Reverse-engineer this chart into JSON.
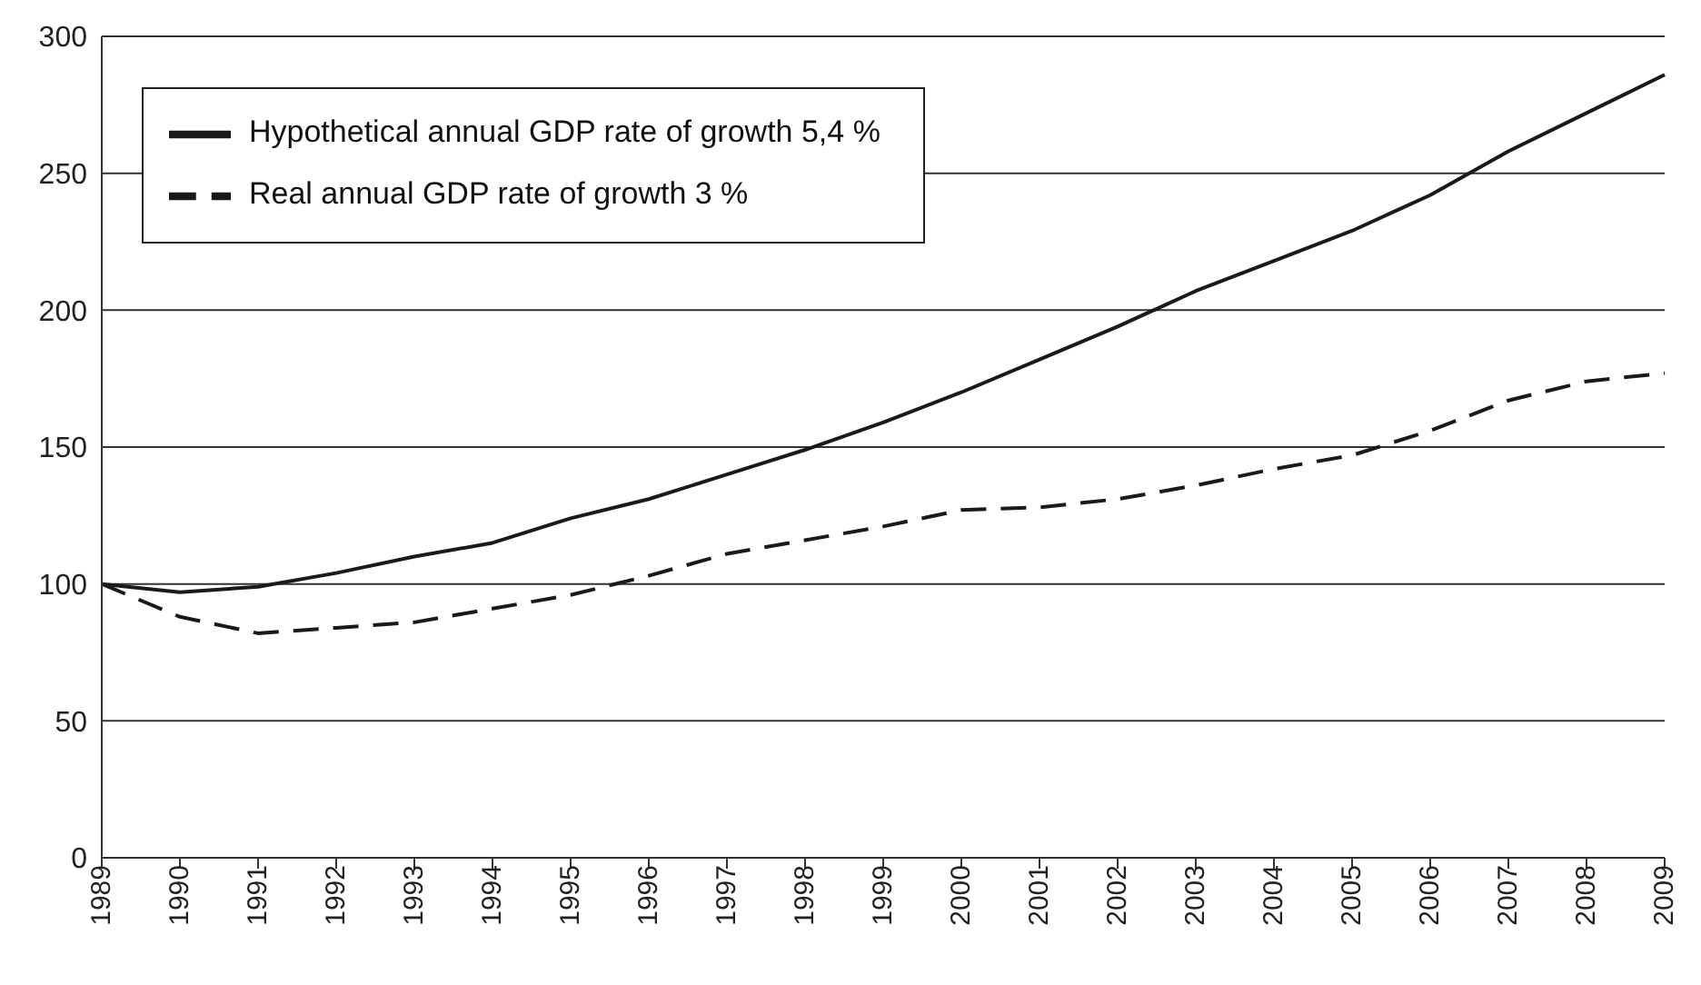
{
  "chart_data": {
    "type": "line",
    "categories": [
      "1989",
      "1990",
      "1991",
      "1992",
      "1993",
      "1994",
      "1995",
      "1996",
      "1997",
      "1998",
      "1999",
      "2000",
      "2001",
      "2002",
      "2003",
      "2004",
      "2005",
      "2006",
      "2007",
      "2008",
      "2009"
    ],
    "series": [
      {
        "name": "Hypothetical annual GDP rate of growth 5,4 %",
        "color": "#1a1a1a",
        "line_style": "solid",
        "values": [
          100,
          97,
          99,
          104,
          110,
          115,
          124,
          131,
          140,
          149,
          159,
          170,
          182,
          194,
          207,
          218,
          229,
          242,
          258,
          272,
          286
        ]
      },
      {
        "name": "Real annual GDP rate of growth 3 %",
        "color": "#1a1a1a",
        "line_style": "dashed",
        "values": [
          100,
          88,
          82,
          84,
          86,
          91,
          96,
          103,
          111,
          116,
          121,
          127,
          128,
          131,
          136,
          142,
          147,
          156,
          167,
          174,
          177
        ]
      }
    ],
    "ylim": [
      0,
      300
    ],
    "yticks": [
      0,
      50,
      100,
      150,
      200,
      250,
      300
    ],
    "grid": "y",
    "legend": "top left",
    "marker": "none"
  }
}
